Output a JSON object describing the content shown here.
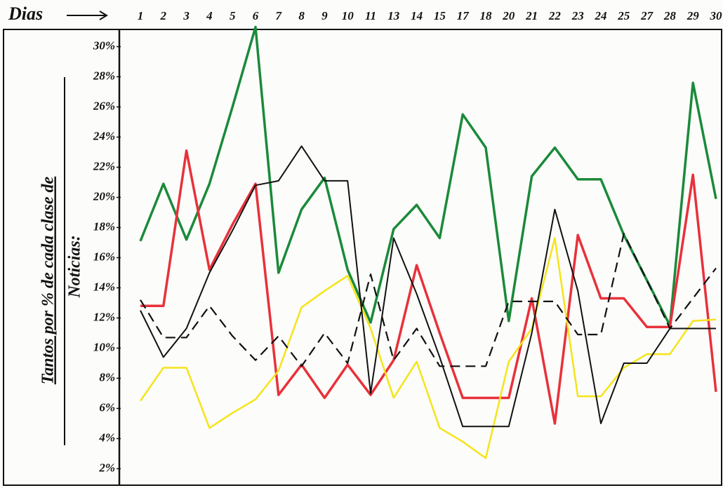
{
  "chart_data": {
    "type": "line",
    "xlabel": "Dias",
    "ylabel": [
      "Tantos por % de cada clase de",
      "Noticias:"
    ],
    "categories": [
      "1",
      "2",
      "3",
      "4",
      "5",
      "6",
      "7",
      "8",
      "9",
      "10",
      "11",
      "13",
      "14",
      "15",
      "17",
      "18",
      "20",
      "21",
      "22",
      "23",
      "24",
      "25",
      "27",
      "28",
      "29",
      "30"
    ],
    "ylim": [
      1,
      31
    ],
    "yticks": [
      {
        "value": 2,
        "label": "2%"
      },
      {
        "value": 4,
        "label": "4%"
      },
      {
        "value": 6,
        "label": "6%"
      },
      {
        "value": 8,
        "label": "8%"
      },
      {
        "value": 10,
        "label": "10%"
      },
      {
        "value": 12,
        "label": "12%"
      },
      {
        "value": 14,
        "label": "14%"
      },
      {
        "value": 16,
        "label": "16%"
      },
      {
        "value": 18,
        "label": "18%"
      },
      {
        "value": 20,
        "label": "20%"
      },
      {
        "value": 22,
        "label": "22%"
      },
      {
        "value": 24,
        "label": "24%"
      },
      {
        "value": 26,
        "label": "26%"
      },
      {
        "value": 28,
        "label": "28%"
      },
      {
        "value": 30,
        "label": "30%"
      }
    ],
    "grid": false,
    "series": [
      {
        "color": "#1a8a3a",
        "width": 3.5,
        "dashed": false,
        "values": [
          17.1,
          20.9,
          17.2,
          20.9,
          26,
          31.3,
          15.0,
          19.2,
          21.3,
          15.2,
          11.7,
          17.9,
          19.5,
          17.3,
          25.5,
          23.3,
          11.8,
          21.4,
          23.3,
          21.2,
          21.2,
          17.5,
          14.5,
          11.5,
          27.6,
          19.9
        ]
      },
      {
        "color": "#e8313a",
        "width": 3.5,
        "dashed": false,
        "values": [
          12.8,
          12.8,
          23.1,
          15.2,
          18.2,
          20.9,
          6.9,
          8.9,
          6.7,
          8.9,
          6.9,
          9.2,
          15.5,
          11.0,
          6.7,
          6.7,
          6.7,
          13.3,
          5.0,
          17.5,
          13.3,
          13.3,
          11.4,
          11.4,
          21.5,
          7.1
        ]
      },
      {
        "color": "#f5e41a",
        "width": 2.5,
        "dashed": false,
        "values": [
          6.5,
          8.7,
          8.7,
          4.7,
          5.7,
          6.6,
          8.5,
          12.7,
          13.8,
          14.8,
          11.3,
          6.7,
          9.1,
          4.7,
          3.8,
          2.7,
          9.1,
          11.3,
          17.3,
          6.8,
          6.8,
          8.7,
          9.6,
          9.6,
          11.8,
          11.9
        ]
      },
      {
        "color": "#111111",
        "width": 2,
        "dashed": false,
        "values": [
          12.5,
          9.4,
          11.3,
          15.0,
          17.8,
          20.8,
          21.1,
          23.4,
          21.1,
          21.1,
          7.0,
          17.3,
          13.6,
          9.4,
          4.8,
          4.8,
          4.8,
          11.0,
          19.2,
          13.8,
          5.0,
          9.0,
          9.0,
          11.3,
          11.3,
          11.3
        ]
      },
      {
        "color": "#111111",
        "width": 2.2,
        "dashed": true,
        "values": [
          13.2,
          10.7,
          10.7,
          12.8,
          10.8,
          9.2,
          10.8,
          8.8,
          11.0,
          9.0,
          14.9,
          9.2,
          11.3,
          8.8,
          8.8,
          8.8,
          13.1,
          13.1,
          13.1,
          10.9,
          10.9,
          17.6,
          14.5,
          11.3,
          13.3,
          15.3
        ]
      }
    ]
  }
}
